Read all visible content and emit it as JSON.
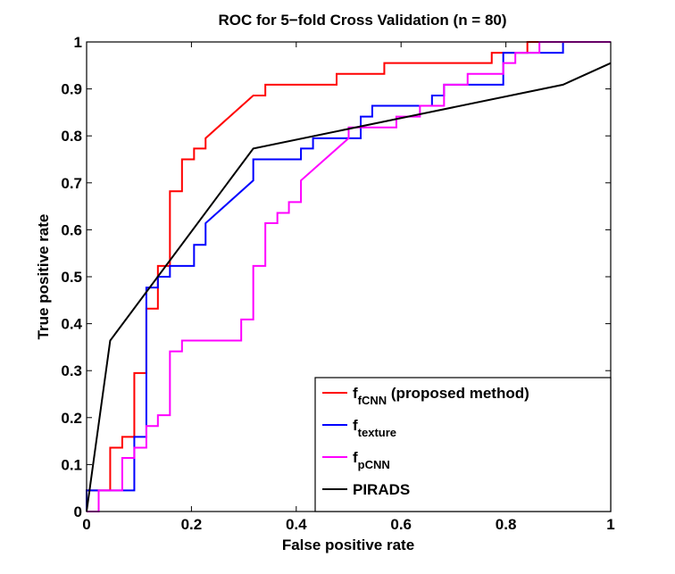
{
  "chart_data": {
    "type": "line",
    "title": "ROC for 5−fold Cross Validation (n = 80)",
    "xlabel": "False positive rate",
    "ylabel": "True positive rate",
    "xlim": [
      0,
      1
    ],
    "ylim": [
      0,
      1
    ],
    "x_ticks": [
      "0",
      "0.2",
      "0.4",
      "0.6",
      "0.8",
      "1"
    ],
    "y_ticks": [
      "0",
      "0.1",
      "0.2",
      "0.3",
      "0.4",
      "0.5",
      "0.6",
      "0.7",
      "0.8",
      "0.9",
      "1"
    ],
    "grid": false,
    "legend_position": "bottom-right",
    "series": [
      {
        "name": "fCNN",
        "legend_base": "f",
        "legend_sub": "fCNN",
        "legend_suffix": " (proposed method)",
        "color": "#ff0000",
        "points": [
          [
            0,
            0
          ],
          [
            0,
            0.045
          ],
          [
            0.045,
            0.045
          ],
          [
            0.045,
            0.136
          ],
          [
            0.068,
            0.136
          ],
          [
            0.068,
            0.159
          ],
          [
            0.091,
            0.159
          ],
          [
            0.091,
            0.295
          ],
          [
            0.114,
            0.295
          ],
          [
            0.114,
            0.432
          ],
          [
            0.136,
            0.432
          ],
          [
            0.136,
            0.523
          ],
          [
            0.159,
            0.523
          ],
          [
            0.159,
            0.682
          ],
          [
            0.182,
            0.682
          ],
          [
            0.182,
            0.75
          ],
          [
            0.205,
            0.75
          ],
          [
            0.205,
            0.773
          ],
          [
            0.227,
            0.773
          ],
          [
            0.227,
            0.795
          ],
          [
            0.318,
            0.886
          ],
          [
            0.341,
            0.886
          ],
          [
            0.341,
            0.909
          ],
          [
            0.477,
            0.909
          ],
          [
            0.477,
            0.932
          ],
          [
            0.568,
            0.932
          ],
          [
            0.568,
            0.955
          ],
          [
            0.773,
            0.955
          ],
          [
            0.773,
            0.977
          ],
          [
            0.841,
            0.977
          ],
          [
            0.841,
            1
          ],
          [
            1,
            1
          ]
        ]
      },
      {
        "name": "texture",
        "legend_base": "f",
        "legend_sub": "texture",
        "legend_suffix": "",
        "color": "#0000ff",
        "points": [
          [
            0,
            0
          ],
          [
            0,
            0.045
          ],
          [
            0.091,
            0.045
          ],
          [
            0.091,
            0.159
          ],
          [
            0.114,
            0.159
          ],
          [
            0.114,
            0.477
          ],
          [
            0.136,
            0.477
          ],
          [
            0.136,
            0.5
          ],
          [
            0.159,
            0.5
          ],
          [
            0.159,
            0.523
          ],
          [
            0.205,
            0.523
          ],
          [
            0.205,
            0.568
          ],
          [
            0.227,
            0.568
          ],
          [
            0.227,
            0.614
          ],
          [
            0.318,
            0.705
          ],
          [
            0.318,
            0.75
          ],
          [
            0.409,
            0.75
          ],
          [
            0.409,
            0.773
          ],
          [
            0.432,
            0.773
          ],
          [
            0.432,
            0.795
          ],
          [
            0.523,
            0.795
          ],
          [
            0.523,
            0.841
          ],
          [
            0.545,
            0.841
          ],
          [
            0.545,
            0.864
          ],
          [
            0.659,
            0.864
          ],
          [
            0.659,
            0.886
          ],
          [
            0.682,
            0.886
          ],
          [
            0.682,
            0.909
          ],
          [
            0.795,
            0.909
          ],
          [
            0.795,
            0.977
          ],
          [
            0.818,
            0.977
          ],
          [
            0.818,
            0.977
          ],
          [
            0.864,
            0.977
          ],
          [
            0.864,
            0.977
          ],
          [
            0.909,
            0.977
          ],
          [
            0.909,
            1
          ],
          [
            1,
            1
          ]
        ]
      },
      {
        "name": "pCNN",
        "legend_base": "f",
        "legend_sub": "pCNN",
        "legend_suffix": "",
        "color": "#ff00ff",
        "points": [
          [
            0,
            0
          ],
          [
            0.023,
            0
          ],
          [
            0.023,
            0.045
          ],
          [
            0.068,
            0.045
          ],
          [
            0.068,
            0.114
          ],
          [
            0.091,
            0.114
          ],
          [
            0.091,
            0.136
          ],
          [
            0.114,
            0.136
          ],
          [
            0.114,
            0.182
          ],
          [
            0.136,
            0.182
          ],
          [
            0.136,
            0.205
          ],
          [
            0.159,
            0.205
          ],
          [
            0.159,
            0.341
          ],
          [
            0.182,
            0.341
          ],
          [
            0.182,
            0.364
          ],
          [
            0.295,
            0.364
          ],
          [
            0.295,
            0.409
          ],
          [
            0.318,
            0.409
          ],
          [
            0.318,
            0.523
          ],
          [
            0.341,
            0.523
          ],
          [
            0.341,
            0.614
          ],
          [
            0.364,
            0.614
          ],
          [
            0.364,
            0.636
          ],
          [
            0.386,
            0.636
          ],
          [
            0.386,
            0.659
          ],
          [
            0.409,
            0.659
          ],
          [
            0.409,
            0.705
          ],
          [
            0.5,
            0.795
          ],
          [
            0.5,
            0.818
          ],
          [
            0.545,
            0.818
          ],
          [
            0.591,
            0.818
          ],
          [
            0.591,
            0.841
          ],
          [
            0.636,
            0.841
          ],
          [
            0.636,
            0.864
          ],
          [
            0.682,
            0.864
          ],
          [
            0.682,
            0.909
          ],
          [
            0.727,
            0.909
          ],
          [
            0.727,
            0.932
          ],
          [
            0.795,
            0.932
          ],
          [
            0.795,
            0.955
          ],
          [
            0.818,
            0.955
          ],
          [
            0.818,
            0.977
          ],
          [
            0.864,
            0.977
          ],
          [
            0.864,
            1
          ],
          [
            1,
            1
          ]
        ]
      },
      {
        "name": "PIRADS",
        "legend_base": "PIRADS",
        "legend_sub": "",
        "legend_suffix": "",
        "color": "#000000",
        "points": [
          [
            0,
            0
          ],
          [
            0.045,
            0.364
          ],
          [
            0.318,
            0.773
          ],
          [
            0.909,
            0.909
          ],
          [
            1,
            0.955
          ]
        ]
      }
    ]
  }
}
